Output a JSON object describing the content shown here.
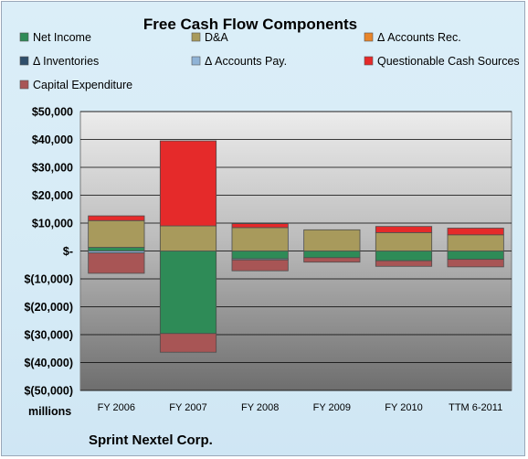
{
  "chart_data": {
    "type": "bar",
    "stacked": true,
    "title": "Free Cash Flow Components",
    "unit_label": "millions",
    "company": "Sprint Nextel Corp.",
    "categories": [
      "FY 2006",
      "FY 2007",
      "FY 2008",
      "FY 2009",
      "FY 2010",
      "TTM 6-2011"
    ],
    "ylim": [
      -50000,
      50000
    ],
    "y_ticks": [
      50000,
      40000,
      30000,
      20000,
      10000,
      0,
      -10000,
      -20000,
      -30000,
      -40000,
      -50000
    ],
    "y_tick_labels": [
      "$50,000",
      "$40,000",
      "$30,000",
      "$20,000",
      "$10,000",
      "$-",
      "$(10,000)",
      "$(20,000)",
      "$(30,000)",
      "$(40,000)",
      "$(50,000)"
    ],
    "grid": true,
    "legend_position": "top",
    "series": [
      {
        "name": "Net Income",
        "color": "#2e8b57",
        "values": [
          1300,
          -29600,
          -2800,
          -2400,
          -3500,
          -3000
        ]
      },
      {
        "name": "D&A",
        "color": "#a89a5c",
        "values": [
          9600,
          9000,
          8400,
          7600,
          6600,
          5800
        ]
      },
      {
        "name": "Δ Accounts Rec.",
        "color": "#e8852a",
        "values": [
          0,
          0,
          0,
          0,
          0,
          0
        ]
      },
      {
        "name": "Δ Inventories",
        "color": "#2f4e6b",
        "values": [
          0,
          0,
          0,
          0,
          0,
          0
        ]
      },
      {
        "name": "Δ Accounts Pay.",
        "color": "#8fb3d6",
        "values": [
          -700,
          0,
          -400,
          0,
          0,
          0
        ]
      },
      {
        "name": "Questionable Cash Sources",
        "color": "#e52a2a",
        "values": [
          1700,
          30500,
          1400,
          0,
          2200,
          2400
        ]
      },
      {
        "name": "Capital Expenditure",
        "color": "#a85555",
        "values": [
          -7300,
          -6700,
          -3900,
          -1600,
          -2000,
          -2700
        ]
      }
    ]
  }
}
